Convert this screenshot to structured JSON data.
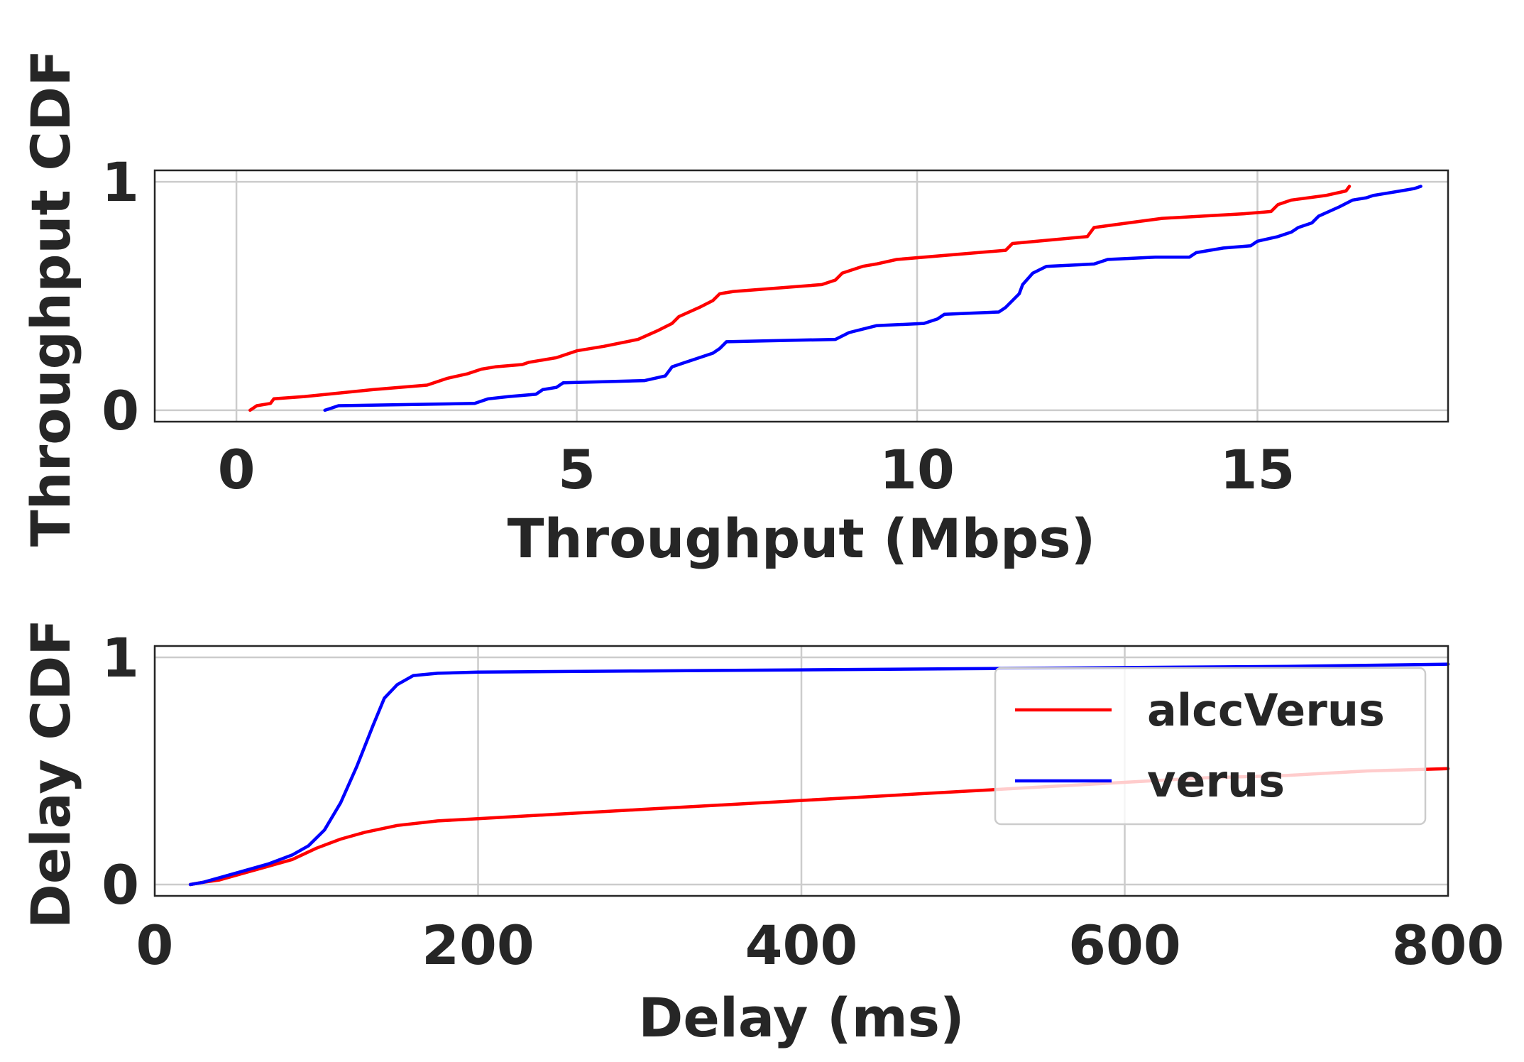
{
  "colors": {
    "alccVerus": "#ff0000",
    "verus": "#0000ff",
    "grid": "#cccccc",
    "text": "#262626"
  },
  "chart_data": [
    {
      "type": "line",
      "xlabel": "Throughput (Mbps)",
      "ylabel": "Throughput CDF",
      "xlim": [
        -1.2,
        17.8
      ],
      "ylim": [
        -0.05,
        1.05
      ],
      "xticks": [
        0,
        5,
        10,
        15
      ],
      "yticks": [
        0,
        1
      ],
      "grid": true,
      "legend": null,
      "series": [
        {
          "name": "alccVerus",
          "points": [
            [
              0.2,
              0.0
            ],
            [
              0.3,
              0.02
            ],
            [
              0.5,
              0.03
            ],
            [
              0.55,
              0.05
            ],
            [
              1.0,
              0.06
            ],
            [
              2.0,
              0.09
            ],
            [
              2.8,
              0.11
            ],
            [
              3.1,
              0.14
            ],
            [
              3.4,
              0.16
            ],
            [
              3.6,
              0.18
            ],
            [
              3.8,
              0.19
            ],
            [
              4.2,
              0.2
            ],
            [
              4.3,
              0.21
            ],
            [
              4.7,
              0.23
            ],
            [
              5.0,
              0.26
            ],
            [
              5.4,
              0.28
            ],
            [
              5.9,
              0.31
            ],
            [
              6.2,
              0.35
            ],
            [
              6.4,
              0.38
            ],
            [
              6.5,
              0.41
            ],
            [
              6.8,
              0.45
            ],
            [
              7.0,
              0.48
            ],
            [
              7.1,
              0.51
            ],
            [
              7.3,
              0.52
            ],
            [
              8.6,
              0.55
            ],
            [
              8.8,
              0.57
            ],
            [
              8.9,
              0.6
            ],
            [
              9.2,
              0.63
            ],
            [
              9.4,
              0.64
            ],
            [
              9.7,
              0.66
            ],
            [
              11.3,
              0.7
            ],
            [
              11.4,
              0.73
            ],
            [
              12.5,
              0.76
            ],
            [
              12.6,
              0.8
            ],
            [
              13.1,
              0.82
            ],
            [
              13.6,
              0.84
            ],
            [
              14.8,
              0.86
            ],
            [
              15.2,
              0.87
            ],
            [
              15.3,
              0.9
            ],
            [
              15.5,
              0.92
            ],
            [
              16.0,
              0.94
            ],
            [
              16.3,
              0.96
            ],
            [
              16.35,
              0.98
            ]
          ]
        },
        {
          "name": "verus",
          "points": [
            [
              1.3,
              0.0
            ],
            [
              1.4,
              0.01
            ],
            [
              1.5,
              0.02
            ],
            [
              3.5,
              0.03
            ],
            [
              3.7,
              0.05
            ],
            [
              4.0,
              0.06
            ],
            [
              4.4,
              0.07
            ],
            [
              4.5,
              0.09
            ],
            [
              4.7,
              0.1
            ],
            [
              4.8,
              0.12
            ],
            [
              6.0,
              0.13
            ],
            [
              6.3,
              0.15
            ],
            [
              6.4,
              0.19
            ],
            [
              6.6,
              0.21
            ],
            [
              6.8,
              0.23
            ],
            [
              7.0,
              0.25
            ],
            [
              7.1,
              0.27
            ],
            [
              7.2,
              0.3
            ],
            [
              8.8,
              0.31
            ],
            [
              9.0,
              0.34
            ],
            [
              9.4,
              0.37
            ],
            [
              10.1,
              0.38
            ],
            [
              10.3,
              0.4
            ],
            [
              10.4,
              0.42
            ],
            [
              11.2,
              0.43
            ],
            [
              11.3,
              0.45
            ],
            [
              11.4,
              0.48
            ],
            [
              11.5,
              0.51
            ],
            [
              11.55,
              0.55
            ],
            [
              11.7,
              0.6
            ],
            [
              11.9,
              0.63
            ],
            [
              12.6,
              0.64
            ],
            [
              12.8,
              0.66
            ],
            [
              13.5,
              0.67
            ],
            [
              14.0,
              0.67
            ],
            [
              14.1,
              0.69
            ],
            [
              14.5,
              0.71
            ],
            [
              14.9,
              0.72
            ],
            [
              15.0,
              0.74
            ],
            [
              15.3,
              0.76
            ],
            [
              15.5,
              0.78
            ],
            [
              15.6,
              0.8
            ],
            [
              15.8,
              0.82
            ],
            [
              15.9,
              0.85
            ],
            [
              16.2,
              0.89
            ],
            [
              16.4,
              0.92
            ],
            [
              16.6,
              0.93
            ],
            [
              16.7,
              0.94
            ],
            [
              16.9,
              0.95
            ],
            [
              17.1,
              0.96
            ],
            [
              17.3,
              0.97
            ],
            [
              17.4,
              0.98
            ]
          ]
        }
      ]
    },
    {
      "type": "line",
      "xlabel": "Delay (ms)",
      "ylabel": "Delay CDF",
      "xlim": [
        0,
        800
      ],
      "ylim": [
        -0.05,
        1.05
      ],
      "xticks": [
        0,
        200,
        400,
        600,
        800
      ],
      "yticks": [
        0,
        1
      ],
      "grid": true,
      "legend": "upper-right",
      "series": [
        {
          "name": "alccVerus",
          "points": [
            [
              22,
              0.0
            ],
            [
              30,
              0.01
            ],
            [
              40,
              0.02
            ],
            [
              55,
              0.05
            ],
            [
              70,
              0.08
            ],
            [
              85,
              0.11
            ],
            [
              100,
              0.16
            ],
            [
              115,
              0.2
            ],
            [
              130,
              0.23
            ],
            [
              150,
              0.26
            ],
            [
              175,
              0.28
            ],
            [
              200,
              0.29
            ],
            [
              250,
              0.31
            ],
            [
              300,
              0.33
            ],
            [
              350,
              0.35
            ],
            [
              400,
              0.37
            ],
            [
              450,
              0.39
            ],
            [
              500,
              0.41
            ],
            [
              550,
              0.43
            ],
            [
              600,
              0.45
            ],
            [
              650,
              0.47
            ],
            [
              700,
              0.48
            ],
            [
              750,
              0.5
            ],
            [
              800,
              0.51
            ]
          ]
        },
        {
          "name": "verus",
          "points": [
            [
              22,
              0.0
            ],
            [
              30,
              0.01
            ],
            [
              40,
              0.03
            ],
            [
              55,
              0.06
            ],
            [
              70,
              0.09
            ],
            [
              85,
              0.13
            ],
            [
              95,
              0.17
            ],
            [
              105,
              0.24
            ],
            [
              115,
              0.36
            ],
            [
              125,
              0.52
            ],
            [
              135,
              0.7
            ],
            [
              142,
              0.82
            ],
            [
              150,
              0.88
            ],
            [
              160,
              0.92
            ],
            [
              175,
              0.93
            ],
            [
              200,
              0.935
            ],
            [
              300,
              0.94
            ],
            [
              400,
              0.945
            ],
            [
              500,
              0.95
            ],
            [
              600,
              0.955
            ],
            [
              700,
              0.96
            ],
            [
              800,
              0.97
            ]
          ]
        }
      ]
    }
  ]
}
